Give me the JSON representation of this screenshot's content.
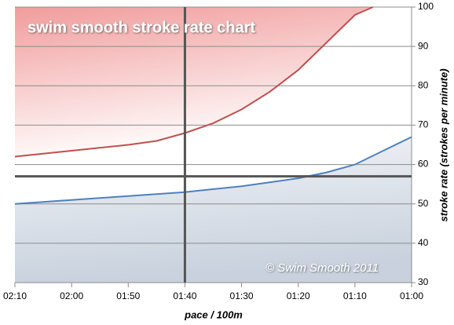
{
  "chart_data": {
    "type": "line",
    "title": "swim smooth stroke rate chart",
    "watermark": "© Swim Smooth 2011",
    "x_label": "pace / 100m",
    "y_label": "stroke rate (strokes per minute)",
    "xlim": [
      130,
      60
    ],
    "xticks": [
      {
        "value": 130,
        "label": "02:10"
      },
      {
        "value": 120,
        "label": "02:00"
      },
      {
        "value": 110,
        "label": "01:50"
      },
      {
        "value": 100,
        "label": "01:40"
      },
      {
        "value": 90,
        "label": "01:30"
      },
      {
        "value": 80,
        "label": "01:20"
      },
      {
        "value": 70,
        "label": "01:10"
      },
      {
        "value": 60,
        "label": "01:00"
      }
    ],
    "ylim": [
      30,
      100
    ],
    "yticks": [
      30,
      40,
      50,
      60,
      70,
      80,
      90,
      100
    ],
    "grid": true,
    "crosshair": {
      "x": 100,
      "y": 57
    },
    "series": [
      {
        "color": "#c0504d",
        "fill": "upper",
        "x": [
          130,
          120,
          110,
          105,
          100,
          95,
          90,
          85,
          80,
          75,
          70,
          66.8
        ],
        "values": [
          62,
          63.5,
          65,
          66,
          68,
          70.5,
          74,
          78.5,
          84,
          91,
          98,
          100
        ]
      },
      {
        "color": "#4f81bd",
        "fill": "lower",
        "x": [
          130,
          120,
          110,
          100,
          90,
          80,
          75,
          70,
          65,
          60
        ],
        "values": [
          50,
          51,
          52,
          53,
          54.5,
          56.5,
          58,
          60,
          63.5,
          67
        ]
      }
    ]
  }
}
